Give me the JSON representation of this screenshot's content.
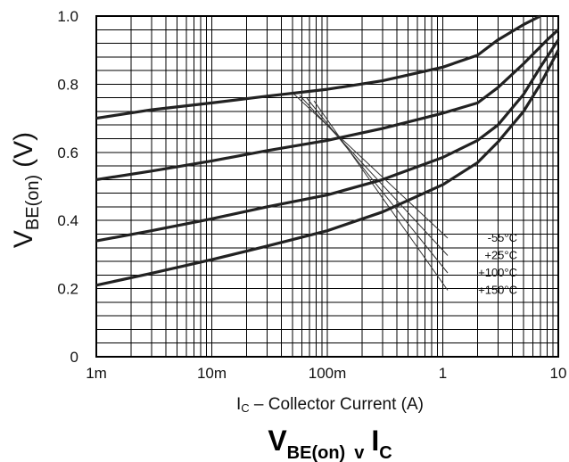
{
  "chart_data": {
    "type": "line",
    "xscale": "log",
    "x_ticks": [
      "1m",
      "10m",
      "100m",
      "1",
      "10"
    ],
    "y_ticks": [
      "0",
      "0.2",
      "0.4",
      "0.6",
      "0.8",
      "1.0"
    ],
    "xlim": [
      0.001,
      10
    ],
    "ylim": [
      0,
      1.0
    ],
    "grid": true,
    "xlabel_main": "I",
    "xlabel_sub": "C",
    "xlabel_rest": " – Collector Current (A)",
    "ylabel_main": "V",
    "ylabel_sub": "BE(on)",
    "ylabel_unit": "(V)",
    "title_main": "V",
    "title_sub": "BE(on)",
    "title_mid": "v",
    "title_end": "I",
    "title_end_sub": "C",
    "series": [
      {
        "name": "-55°C",
        "x": [
          0.001,
          0.003,
          0.01,
          0.03,
          0.1,
          0.3,
          1,
          2,
          3,
          5,
          7
        ],
        "y": [
          0.7,
          0.725,
          0.745,
          0.765,
          0.785,
          0.81,
          0.85,
          0.885,
          0.93,
          0.975,
          1.0
        ]
      },
      {
        "name": "+25°C",
        "x": [
          0.001,
          0.003,
          0.01,
          0.03,
          0.1,
          0.3,
          1,
          2,
          3,
          5,
          8,
          10
        ],
        "y": [
          0.52,
          0.545,
          0.575,
          0.605,
          0.635,
          0.67,
          0.715,
          0.745,
          0.79,
          0.86,
          0.93,
          0.96
        ]
      },
      {
        "name": "+100°C",
        "x": [
          0.001,
          0.003,
          0.01,
          0.03,
          0.1,
          0.3,
          1,
          2,
          3,
          5,
          7,
          10
        ],
        "y": [
          0.34,
          0.37,
          0.405,
          0.44,
          0.475,
          0.52,
          0.585,
          0.635,
          0.68,
          0.77,
          0.85,
          0.93
        ]
      },
      {
        "name": "+150°C",
        "x": [
          0.001,
          0.003,
          0.01,
          0.03,
          0.1,
          0.3,
          1,
          2,
          3,
          5,
          7,
          10
        ],
        "y": [
          0.21,
          0.245,
          0.285,
          0.325,
          0.37,
          0.425,
          0.505,
          0.57,
          0.63,
          0.72,
          0.8,
          0.9
        ]
      }
    ],
    "legend": [
      "-55°C",
      "+25°C",
      "+100°C",
      "+150°C"
    ],
    "legend_placement": "right, lower middle"
  }
}
